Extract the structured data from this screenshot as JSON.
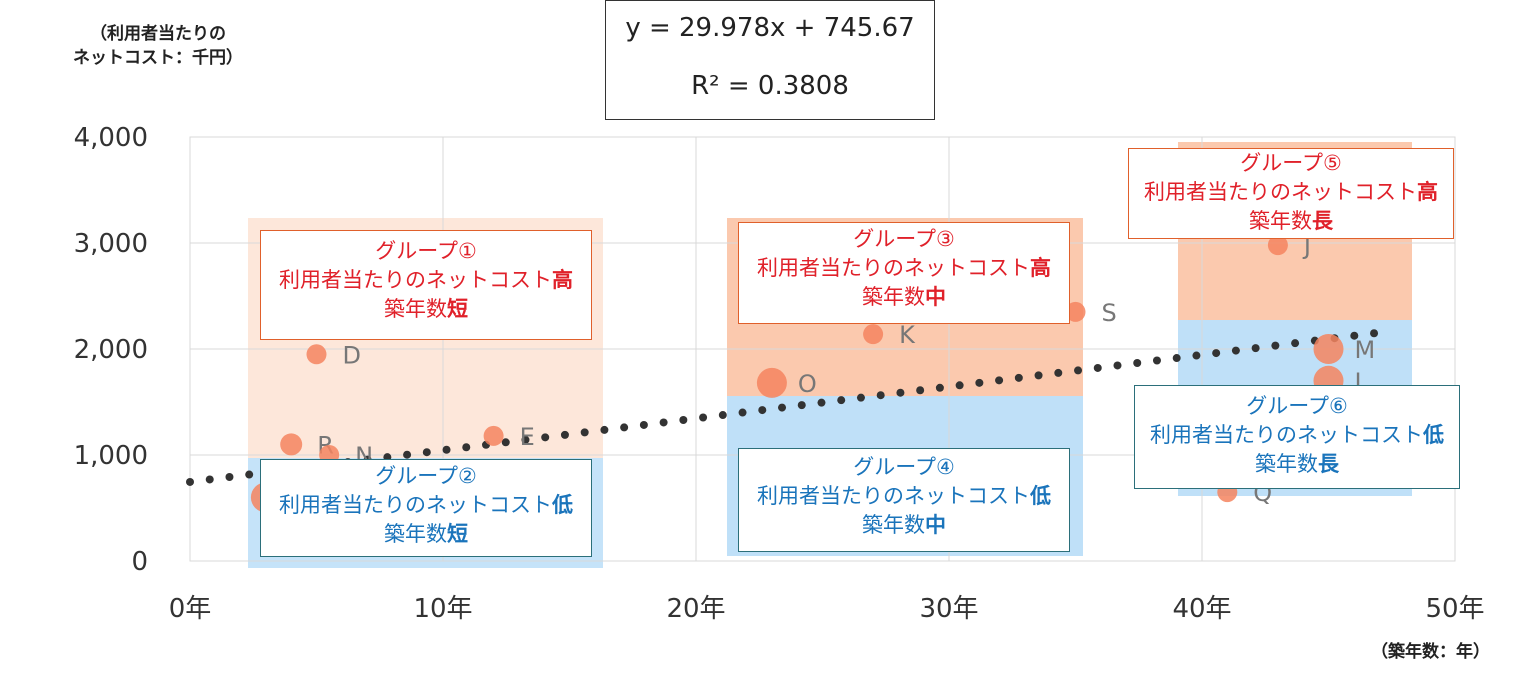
{
  "chart_data": {
    "type": "scatter",
    "ylabel": [
      "（利用者当たりの",
      "ネットコスト：千円）"
    ],
    "xlabel": "（築年数：年）",
    "xlim": [
      0,
      50
    ],
    "ylim": [
      0,
      4000
    ],
    "x_ticks": [
      "0年",
      "10年",
      "20年",
      "30年",
      "40年",
      "50年"
    ],
    "y_ticks": [
      "0",
      "1,000",
      "2,000",
      "3,000",
      "4,000"
    ],
    "grid": "vertical and horizontal",
    "trendline": {
      "type": "linear",
      "slope": 29.978,
      "intercept": 745.67,
      "x_range": [
        0,
        47
      ],
      "style": "dotted"
    },
    "equation_text": "y = 29.978x + 745.67",
    "r2_text": "R² = 0.3808",
    "points": [
      {
        "label": "D",
        "x": 5,
        "y": 1950,
        "size": "small"
      },
      {
        "label": "R",
        "x": 4,
        "y": 1100,
        "size": "medium"
      },
      {
        "label": "N",
        "x": 5.5,
        "y": 1000,
        "size": "small"
      },
      {
        "label": "",
        "x": 3,
        "y": 600,
        "size": "large"
      },
      {
        "label": "E",
        "x": 12,
        "y": 1180,
        "size": "small"
      },
      {
        "label": "O",
        "x": 23,
        "y": 1680,
        "size": "large"
      },
      {
        "label": "K",
        "x": 27,
        "y": 2140,
        "size": "small"
      },
      {
        "label": "S",
        "x": 35,
        "y": 2350,
        "size": "small"
      },
      {
        "label": "J",
        "x": 43,
        "y": 2980,
        "size": "small"
      },
      {
        "label": "M",
        "x": 45,
        "y": 2000,
        "size": "large"
      },
      {
        "label": "L",
        "x": 45,
        "y": 1700,
        "size": "large"
      },
      {
        "label": "Q",
        "x": 41,
        "y": 650,
        "size": "small"
      }
    ],
    "colors": {
      "point": "#f4845f",
      "trend": "#333333",
      "high_band": "#fbc9ae",
      "low_band": "#bfe0f8",
      "high_text": "#e0212a",
      "low_text": "#1a74bb"
    },
    "groups": [
      {
        "id": "1",
        "title": "グループ①",
        "line2_prefix": "利用者当たりのネットコスト",
        "line2_bold": "高",
        "line3_prefix": "築年数",
        "line3_bold": "短",
        "tone": "high"
      },
      {
        "id": "2",
        "title": "グループ②",
        "line2_prefix": "利用者当たりのネットコスト",
        "line2_bold": "低",
        "line3_prefix": "築年数",
        "line3_bold": "短",
        "tone": "low"
      },
      {
        "id": "3",
        "title": "グループ③",
        "line2_prefix": "利用者当たりのネットコスト",
        "line2_bold": "高",
        "line3_prefix": "築年数",
        "line3_bold": "中",
        "tone": "high"
      },
      {
        "id": "4",
        "title": "グループ④",
        "line2_prefix": "利用者当たりのネットコスト",
        "line2_bold": "低",
        "line3_prefix": "築年数",
        "line3_bold": "中",
        "tone": "low"
      },
      {
        "id": "5",
        "title": "グループ⑤",
        "line2_prefix": "利用者当たりのネットコスト",
        "line2_bold": "高",
        "line3_prefix": "築年数",
        "line3_bold": "長",
        "tone": "high"
      },
      {
        "id": "6",
        "title": "グループ⑥",
        "line2_prefix": "利用者当たりのネットコスト",
        "line2_bold": "低",
        "line3_prefix": "築年数",
        "line3_bold": "長",
        "tone": "low"
      }
    ]
  }
}
